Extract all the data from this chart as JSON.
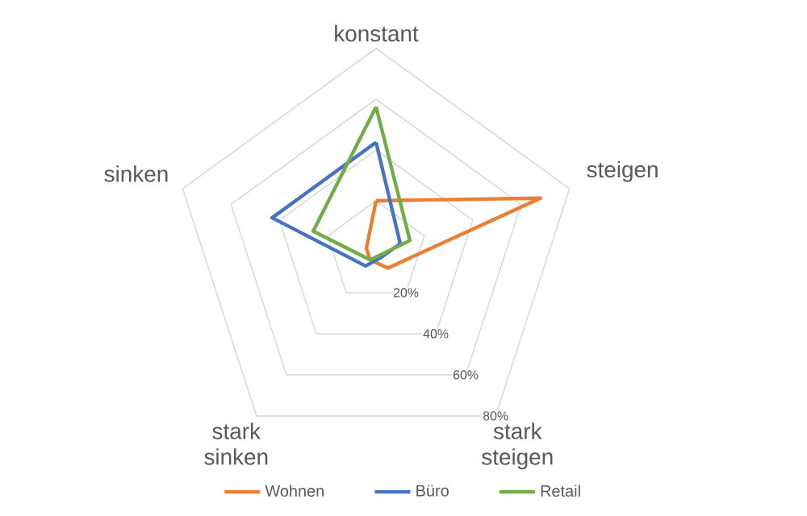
{
  "chart_data": {
    "type": "radar",
    "categories": [
      "konstant",
      "steigen",
      "stark steigen",
      "stark sinken",
      "sinken"
    ],
    "series": [
      {
        "name": "Wohnen",
        "color": "#ed7d31",
        "values": [
          20,
          68,
          8,
          4,
          4
        ]
      },
      {
        "name": "Büro",
        "color": "#4472c4",
        "values": [
          43,
          10,
          3,
          7,
          43
        ]
      },
      {
        "name": "Retail",
        "color": "#70ad47",
        "values": [
          57,
          14,
          2,
          4,
          26
        ]
      }
    ],
    "ylim": [
      0,
      80
    ],
    "yticks": [
      {
        "value": 20,
        "label": "20%"
      },
      {
        "value": 40,
        "label": "40%"
      },
      {
        "value": 60,
        "label": "60%"
      },
      {
        "value": 80,
        "label": "80%"
      }
    ],
    "grid": true,
    "legend": "bottom",
    "marker": "none",
    "line_style": "solid"
  }
}
